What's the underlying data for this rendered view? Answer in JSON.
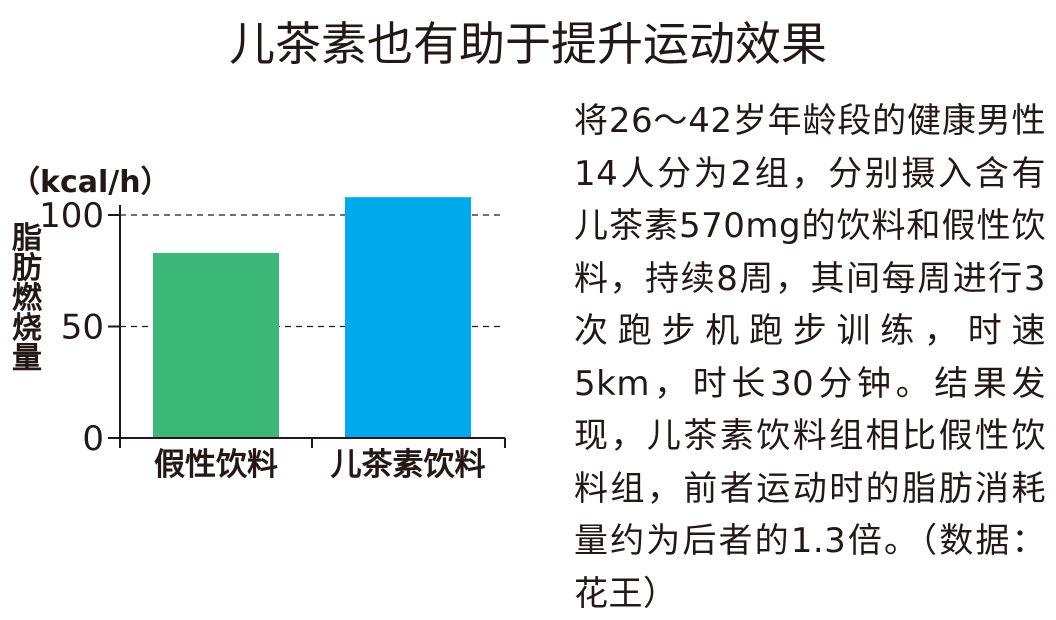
{
  "title": "儿茶素也有助于提升运动效果",
  "description": "将26～42岁年龄段的健康男性14人分为2组，分别摄入含有儿茶素570mg的饮料和假性饮料，持续8周，其间每周进行3次跑步机跑步训练，时速5km，时长30分钟。结果发现，儿茶素饮料组相比假性饮料组，前者运动时的脂肪消耗量约为后者的1.3倍。（数据：花王）",
  "chart_data": {
    "type": "bar",
    "categories": [
      "假性饮料",
      "儿茶素饮料"
    ],
    "values": [
      83,
      108
    ],
    "unit": "（kcal/h）",
    "ylabel": "脂肪燃烧量",
    "xlabel": "",
    "ylim": [
      0,
      100
    ],
    "yticks": [
      "0",
      "50",
      "100"
    ],
    "gridlines": [
      50,
      100
    ],
    "grid": "dashed at 50 and 100",
    "colors": [
      "#3cb878",
      "#00a8ec"
    ]
  }
}
